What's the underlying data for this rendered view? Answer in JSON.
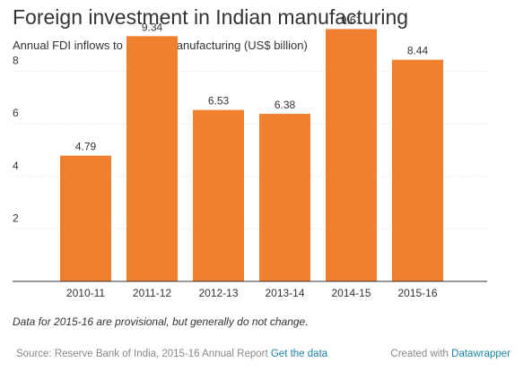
{
  "title": "Foreign investment in Indian manufacturing",
  "subtitle": "Annual FDI inflows to India in manufacturing (US$ billion)",
  "note": "Data for 2015-16 are provisional, but generally do not change.",
  "footer": {
    "source": "Source: Reserve Bank of India, 2015-16 Annual Report",
    "get_data_link": "Get the data",
    "created_with": "Created with",
    "datawrapper_link": "Datawrapper"
  },
  "colors": {
    "bar": "#f07f2f",
    "grid": "#dddddd",
    "baseline": "#333333",
    "link": "#1d81a2"
  },
  "chart_data": {
    "type": "bar",
    "categories": [
      "2010-11",
      "2011-12",
      "2012-13",
      "2013-14",
      "2014-15",
      "2015-16"
    ],
    "values": [
      4.79,
      9.34,
      6.53,
      6.38,
      9.61,
      8.44
    ],
    "value_labels": [
      "4.79",
      "9.34",
      "6.53",
      "6.38",
      "9.61",
      "8.44"
    ],
    "title": "Foreign investment in Indian manufacturing",
    "ylim": [
      0,
      10
    ],
    "y_ticks": [
      2,
      4,
      6,
      8
    ],
    "grid": true
  }
}
